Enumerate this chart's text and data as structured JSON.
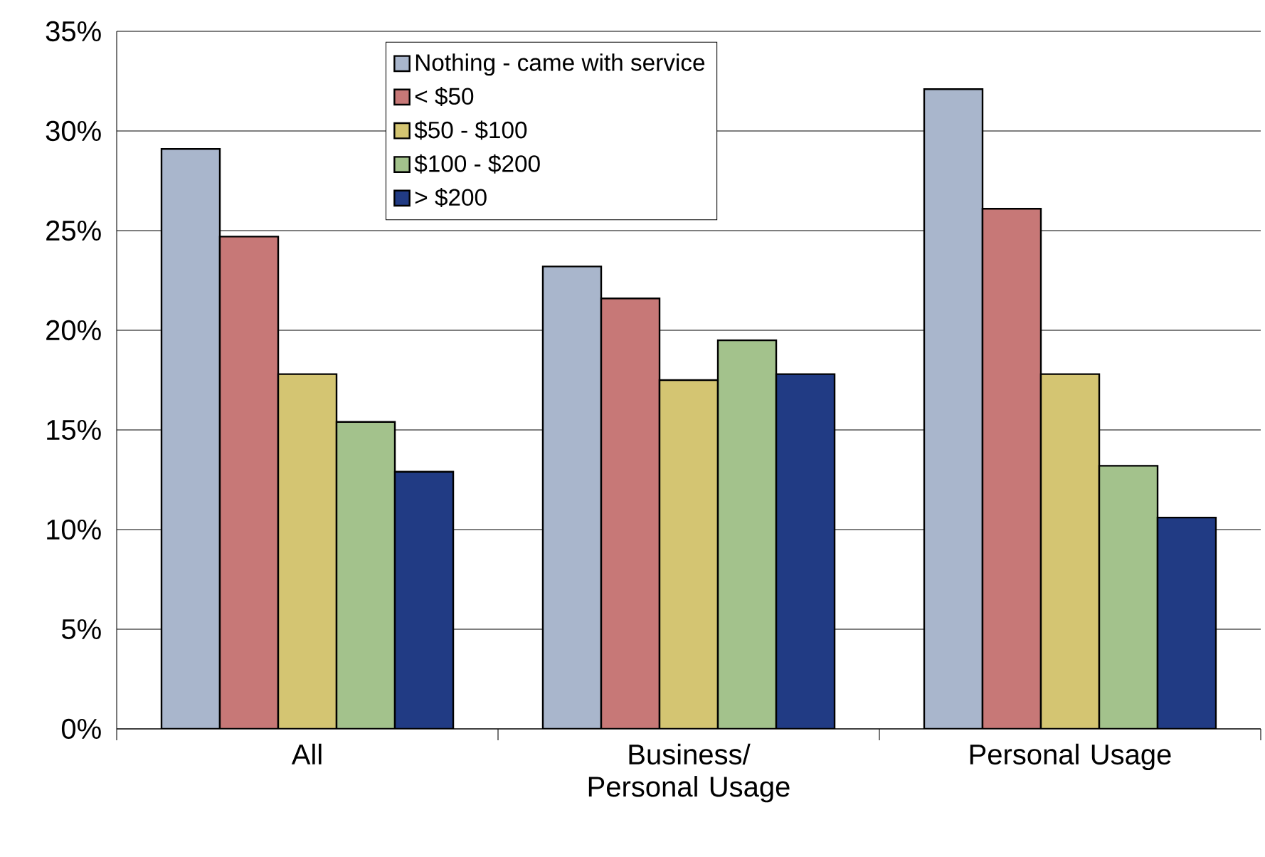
{
  "chart_data": {
    "type": "bar",
    "categories": [
      "All",
      "Business/ Personal Usage",
      "Personal Usage"
    ],
    "series": [
      {
        "name": "Nothing - came with service",
        "color": "#a9b6cc",
        "values": [
          29.1,
          23.2,
          32.1
        ]
      },
      {
        "name": "< $50",
        "color": "#c77877",
        "values": [
          24.7,
          21.6,
          26.1
        ]
      },
      {
        "name": "$50 - $100",
        "color": "#d4c572",
        "values": [
          17.8,
          17.5,
          17.8
        ]
      },
      {
        "name": "$100 - $200",
        "color": "#a3c28c",
        "values": [
          15.4,
          19.5,
          13.2
        ]
      },
      {
        "name": "> $200",
        "color": "#213b84",
        "values": [
          12.9,
          17.8,
          10.6
        ]
      }
    ],
    "ylim": [
      0,
      35
    ],
    "yticks": [
      {
        "value": 0,
        "label": "0%"
      },
      {
        "value": 5,
        "label": "5%"
      },
      {
        "value": 10,
        "label": "10%"
      },
      {
        "value": 15,
        "label": "15%"
      },
      {
        "value": 20,
        "label": "20%"
      },
      {
        "value": 25,
        "label": "25%"
      },
      {
        "value": 30,
        "label": "30%"
      },
      {
        "value": 35,
        "label": "35%"
      }
    ],
    "grid": "y",
    "legend": "top"
  }
}
